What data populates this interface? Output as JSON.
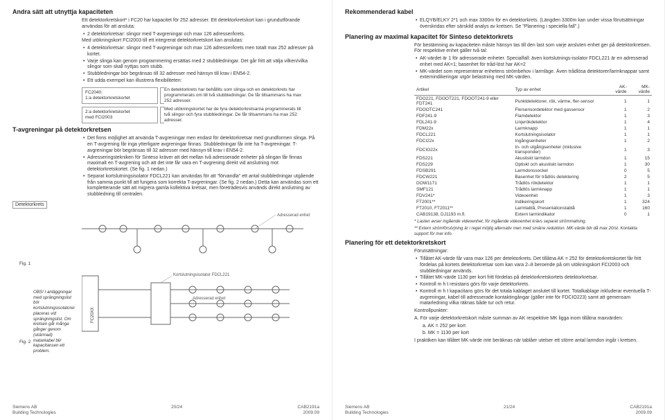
{
  "left": {
    "h2a": "Andra sätt att utnyttja kapaciteten",
    "p1": "Ett detektorkretskort* i FC20 har kapacitet för 252 adresser. Ett detektorkretskort kan i grundutförande användas för att ansluta:",
    "li1": "2 detektorkretsar: slingor med T-avgreningar och max 126 adresser/krets.",
    "p2": "Med utökningskort FCI2003 till ett integrerat detektorkretskort kan anslutas:",
    "li2": "4 detektorkretsar: slingor med T-avgreningar och max 126 adresser/krets men totalt max 252 adresser på kortet.",
    "li3": "Varje slinga kan genom programmering ersättas med 2 stubbledningar. Det går fritt att välja vilken/vilka slingor som skall nyttjas som stubb.",
    "li4": "Stubbledningar bör begränsas till 32 adresser med hänsyn till krav i EN54-2.",
    "li5": "Ett udda exempel kan illustrera flexibiliteten:",
    "box1a": "FC2040:",
    "box1b": "1:a detektorkretskortet",
    "box2a": "2:a detektorkretskortet",
    "box2b": "med FCI2003",
    "col1": "En detektorkrets har behållits som slinga och en detektorkrets har programmerats om till två stubbledningar. De får tillsammans ha max 252 adresser.",
    "col2": "Med utökningskortet har de fyra detektorkretsarna programmerats till två slingor och fyra stubbledningar. De får tillsammans ha max 252 adresser.",
    "h2b": "T-avgreningar på detektorkretsen",
    "t_li1": "Det finns möjlighet att använda T-avgreningar men endast för detektorkretsar med grundformen slinga. På en T-avgrening får inga ytterligare avgreningar finnas. Stubbledningar får inte ha T-avgreningar. T-avgreningar bör begränsas till 32 adresser med hänsyn till krav i EN54-2.",
    "t_li2": "Adresseringstekniken för Sinteso kräver att det mellan två adresserade enheter på slingan får finnas maximalt en T-avgrening och att det inte får vara en T-avgrening direkt vid anslutning mot detektorkretskortet. (Se fig. 1 nedan.)",
    "t_li3": "Separat kortslutningsisolator FDCL221 kan användas för att \"förvandla\" ett antal stubbledningar utgående från samma punkt till att fungera som korrekta T-avgreningar. (Se fig. 2 nedan.) Detta kan användas som ett kompletterande sätt att migrera gamla kollektiva kretsar, men företrädesvis används direkt anslutning av stubbledning till centralen.",
    "detkrets": "Detektorkrets",
    "fig1": "Fig. 1",
    "fig2": "Fig. 2",
    "addr_enhet": "Adresserad enhet",
    "fdcl": "Kortslutningsisolator FDCL221",
    "fc20xx": "FC20XX",
    "obs": "OBS! I anläggningar med sprängningslist bör kortslutningsisolatorer placeras vid sprängningslist. Om kretsen går många gånger genom (skärmad) matarkabel blir kapacitansen ett problem.",
    "footer_l1": "Siemens AB",
    "footer_l2": "Building Technologies",
    "footer_c": "20/24",
    "footer_r1": "CAB2191a",
    "footer_r2": "2009.09"
  },
  "right": {
    "h2a": "Rekommenderad kabel",
    "li1": "ELQYB/ELKY 2*1 och max 3300m för en detektorkrets. (Längden 3300m kan under vissa förutsättningar överskridas efter särskild analys av kretsen. Se \"Planering i speciella fall\".)",
    "h2b": "Planering av maximal kapacitet för Sinteso detektorkrets",
    "p1": "För bestämning av kapaciteten måste hänsyn tas till den last som varje ansluten enhet ger på detektorkretsen. För respektive enhet gäller två tal:",
    "li2": "AK-värdet är 1 för adresserade enheter. Specialfall: även kortslutnings-isolator FDCL221 är en adresserad enhet med AK=1; basenhet för tråd-löst har AK=2",
    "li3": "MK-värdet som representerar enhetens strömbehov i larmläge. Även trådlösa detektorer/larmknappar samt externindikeringar utgör belastning med MK-värden.",
    "th1": "Artikel",
    "th2": "Typ av enhet",
    "th3": "AK-värde",
    "th4": "MK-värde",
    "rows": [
      [
        "FDO221, FDOOT221, FDOOT241-9 eller FDT241",
        "Punktdetektorer, rök, värme, fler-sensor",
        "1",
        "1"
      ],
      [
        "FDOOTC241",
        "Flersensordetektor med gassensor",
        "1",
        "2"
      ],
      [
        "FDF241-9",
        "Flamdetektor",
        "1",
        "3"
      ],
      [
        "FDL241-9",
        "Linjerökdetektor",
        "1",
        "4"
      ],
      [
        "FDM22x",
        "Larmknapp",
        "1",
        "1"
      ],
      [
        "FDCL221",
        "Kortslutningsisolator",
        "1",
        "1"
      ],
      [
        "FDCI22x",
        "Ingångsenheter",
        "1",
        "2"
      ],
      [
        "FDCIO22x",
        "In- och utgångsenheter (inklusive transponder)",
        "1",
        "3"
      ],
      [
        "FDS221",
        "Akustiskt larmdon",
        "1",
        "15"
      ],
      [
        "FDS229",
        "Optiskt och akustiskt larmdon",
        "1",
        "30"
      ],
      [
        "FDSB291",
        "Larmdonssockel",
        "0",
        "5"
      ],
      [
        "FDCW221",
        "Basenhet för trådlös detektering",
        "2",
        "5"
      ],
      [
        "DOW1171",
        "Trådlös rökdetektor",
        "1",
        "1"
      ],
      [
        "SMF121",
        "Trådlös larmknapp",
        "1",
        "1"
      ],
      [
        "FDV241*",
        "Videoenhet",
        "1",
        "3"
      ],
      [
        "FT2001**",
        "Indikeringskort",
        "1",
        "324"
      ],
      [
        "FT2010, FT2011**",
        "Larmtablå, Presentationstablå",
        "1",
        "160"
      ],
      [
        "CAB19138, DJ1193 m.fl.",
        "Extern larmindikator",
        "0",
        "1"
      ]
    ],
    "note1": "* Lasten avser ingående videoenhet; för ingående videoenhet krävs separat strömmatning.",
    "note2": "** Extern strömförsörjning är i regel möjlig alternativ men med smärre reduktion. MK-värde blir då max 20/st. Kontakta support för mer info.",
    "h2c": "Planering för ett detektorkretskort",
    "sub_for": "Förutsättningar:",
    "f_li1": "Tillåtet AK-värde får vara max 126 per detektorkrets. Det tillåtna AK = 252 för detektorkretskortet får fritt fördelas på kortets detektorkretsar som kan vara 2–8 beroende på om utökningskort FCI2003 och stubbledningar används.",
    "f_li2": "Tillåtet MK-värde 1130 per kort fritt fördelas på detektorkretskortets detektorkretsar.",
    "f_li3": "Kontroll m h t resistans görs för varje detektorkrets.",
    "f_li4": "Kontroll m h t kapacitans görs för det totala kablaget anslutet till kortet. Totalkablage inkluderar eventuella T-avgreningar, kabel till adresserade kontaktingångar (gäller inte för FDCIO223) samt att gemensam matarledning vilka räknas både tur och retur.",
    "sub_kp": "Kontrollpunkter:",
    "kpA": "A. För varje detektorkretskort måste summan av AK respektive MK ligga inom tillåtna maxvärden:",
    "kpAa": "a. AK = 252 per kort",
    "kpAb": "b. MK = 1130 per kort",
    "kp_end": "I praktiken kan tillåtet MK-värde inte beräknas när tablåer utelser ett större antal larmdon ingår i kretsen.",
    "footer_c": "21/24"
  }
}
